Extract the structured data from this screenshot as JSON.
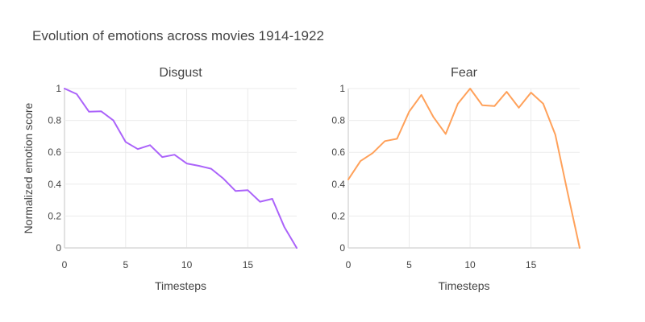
{
  "title": "Evolution of emotions across movies 1914-1922",
  "chart_data": [
    {
      "type": "line",
      "title": "Disgust",
      "xlabel": "Timesteps",
      "ylabel": "Normalized emotion score",
      "xlim": [
        0,
        19
      ],
      "ylim": [
        0,
        1
      ],
      "x_ticks": [
        0,
        5,
        10,
        15
      ],
      "y_ticks": [
        0,
        0.2,
        0.4,
        0.6,
        0.8,
        1
      ],
      "color": "#ab63fa",
      "series": [
        {
          "x": [
            0,
            1,
            2,
            3,
            4,
            5,
            6,
            7,
            8,
            9,
            10,
            11,
            12,
            13,
            14,
            15,
            16,
            17,
            18,
            19
          ],
          "values": [
            1.0,
            0.965,
            0.855,
            0.857,
            0.8,
            0.665,
            0.62,
            0.645,
            0.57,
            0.585,
            0.53,
            0.515,
            0.497,
            0.435,
            0.357,
            0.362,
            0.29,
            0.308,
            0.13,
            0.0
          ]
        }
      ]
    },
    {
      "type": "line",
      "title": "Fear",
      "xlabel": "Timesteps",
      "ylabel": "",
      "xlim": [
        0,
        19
      ],
      "ylim": [
        0,
        1
      ],
      "x_ticks": [
        0,
        5,
        10,
        15
      ],
      "y_ticks": [
        0,
        0.2,
        0.4,
        0.6,
        0.8,
        1
      ],
      "color": "#ffa15a",
      "series": [
        {
          "x": [
            0,
            1,
            2,
            3,
            4,
            5,
            6,
            7,
            8,
            9,
            10,
            11,
            12,
            13,
            14,
            15,
            16,
            17,
            18,
            19
          ],
          "values": [
            0.43,
            0.545,
            0.595,
            0.67,
            0.685,
            0.855,
            0.96,
            0.82,
            0.715,
            0.905,
            1.0,
            0.895,
            0.89,
            0.98,
            0.88,
            0.975,
            0.905,
            0.71,
            0.35,
            0.0
          ]
        }
      ]
    }
  ]
}
